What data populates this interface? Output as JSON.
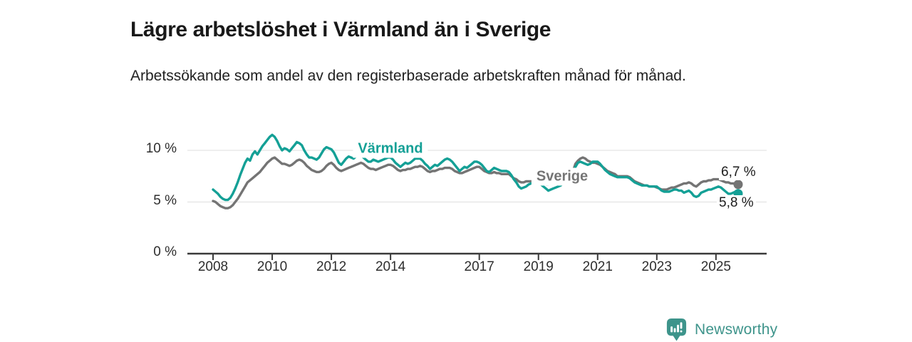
{
  "title": "Lägre arbetslöshet i Värmland än i Sverige",
  "subtitle": "Arbetssökande som andel av den registerbaserade arbetskraften månad för månad.",
  "branding": {
    "name": "Newsworthy",
    "icon": "newsworthy-speech-bubble-bar-chart-icon",
    "color": "#3E948B"
  },
  "colors": {
    "varmland_teal": "#14A096",
    "sverige_gray": "#747474",
    "gridline": "#E3E3E3",
    "axis": "#3A3A3A",
    "text": "#1D1D1D"
  },
  "chart_data": {
    "type": "line",
    "unit": "%",
    "x_frequency": "monthly",
    "x_start": "2008-01",
    "x_end": "2025-10",
    "grid": "horizontal-only",
    "legend_position": "inline-labels",
    "ylim": [
      0,
      12
    ],
    "yticks": [
      {
        "value": 0,
        "label": "0 %"
      },
      {
        "value": 5,
        "label": "5 %"
      },
      {
        "value": 10,
        "label": "10 %"
      }
    ],
    "xticks": [
      "2008",
      "2010",
      "2012",
      "2014",
      "2017",
      "2019",
      "2021",
      "2023",
      "2025"
    ],
    "series": [
      {
        "name": "Värmland",
        "color": "#14A096",
        "end_label": "5,8 %",
        "end_value": 5.8,
        "values": [
          6.2,
          6.0,
          5.8,
          5.5,
          5.3,
          5.2,
          5.2,
          5.4,
          5.8,
          6.3,
          6.9,
          7.6,
          8.2,
          8.8,
          9.2,
          9.0,
          9.6,
          9.9,
          9.6,
          10.0,
          10.4,
          10.7,
          11.0,
          11.3,
          11.5,
          11.3,
          10.9,
          10.4,
          10.0,
          10.2,
          10.1,
          9.9,
          10.2,
          10.5,
          10.8,
          10.7,
          10.5,
          10.0,
          9.6,
          9.3,
          9.3,
          9.2,
          9.1,
          9.3,
          9.7,
          10.1,
          10.3,
          10.2,
          10.1,
          9.8,
          9.3,
          8.8,
          8.6,
          8.9,
          9.2,
          9.4,
          9.3,
          9.2,
          9.4,
          9.6,
          9.5,
          9.3,
          9.1,
          8.9,
          8.9,
          9.1,
          9.0,
          8.9,
          9.0,
          9.1,
          9.2,
          9.3,
          9.3,
          9.1,
          8.8,
          8.6,
          8.4,
          8.6,
          8.8,
          8.7,
          8.8,
          9.0,
          9.2,
          9.2,
          9.2,
          9.0,
          8.7,
          8.5,
          8.2,
          8.4,
          8.6,
          8.5,
          8.7,
          8.9,
          9.1,
          9.2,
          9.1,
          8.9,
          8.6,
          8.3,
          8.0,
          8.2,
          8.4,
          8.3,
          8.5,
          8.7,
          8.9,
          8.9,
          8.8,
          8.6,
          8.3,
          8.0,
          7.9,
          8.1,
          8.3,
          8.2,
          8.1,
          8.0,
          8.0,
          8.0,
          7.9,
          7.6,
          7.2,
          6.9,
          6.5,
          6.3,
          6.4,
          6.5,
          6.7,
          6.8,
          6.9,
          7.0,
          6.9,
          6.7,
          6.5,
          6.3,
          6.1,
          6.2,
          6.3,
          6.4,
          6.5,
          6.6,
          6.8,
          7.0,
          7.2,
          7.4,
          7.8,
          8.4,
          8.8,
          8.9,
          8.8,
          8.7,
          8.6,
          8.7,
          8.9,
          8.9,
          8.9,
          8.7,
          8.4,
          8.1,
          7.9,
          7.7,
          7.6,
          7.5,
          7.4,
          7.4,
          7.4,
          7.4,
          7.4,
          7.3,
          7.1,
          6.9,
          6.8,
          6.7,
          6.6,
          6.6,
          6.6,
          6.5,
          6.5,
          6.5,
          6.5,
          6.3,
          6.1,
          6.0,
          6.0,
          6.0,
          6.1,
          6.2,
          6.2,
          6.1,
          6.1,
          5.9,
          6.0,
          6.1,
          5.9,
          5.6,
          5.5,
          5.6,
          5.9,
          6.0,
          6.1,
          6.2,
          6.2,
          6.3,
          6.4,
          6.5,
          6.4,
          6.2,
          6.0,
          5.8,
          5.8,
          5.9,
          6.0,
          5.8
        ]
      },
      {
        "name": "Sverige",
        "color": "#747474",
        "end_label": "6,7 %",
        "end_value": 6.7,
        "values": [
          5.1,
          5.0,
          4.8,
          4.6,
          4.5,
          4.4,
          4.4,
          4.5,
          4.7,
          5.0,
          5.3,
          5.7,
          6.1,
          6.5,
          6.9,
          7.1,
          7.3,
          7.5,
          7.7,
          7.9,
          8.2,
          8.5,
          8.8,
          9.0,
          9.2,
          9.3,
          9.1,
          8.9,
          8.7,
          8.7,
          8.6,
          8.5,
          8.6,
          8.8,
          9.0,
          9.1,
          9.0,
          8.8,
          8.5,
          8.3,
          8.1,
          8.0,
          7.9,
          7.9,
          8.0,
          8.2,
          8.5,
          8.7,
          8.8,
          8.6,
          8.3,
          8.1,
          8.0,
          8.1,
          8.2,
          8.3,
          8.4,
          8.5,
          8.6,
          8.7,
          8.8,
          8.7,
          8.5,
          8.3,
          8.2,
          8.2,
          8.1,
          8.2,
          8.3,
          8.4,
          8.5,
          8.6,
          8.6,
          8.5,
          8.3,
          8.1,
          8.0,
          8.1,
          8.1,
          8.2,
          8.2,
          8.3,
          8.4,
          8.4,
          8.5,
          8.4,
          8.2,
          8.0,
          7.9,
          8.0,
          8.0,
          8.1,
          8.2,
          8.2,
          8.3,
          8.3,
          8.3,
          8.2,
          8.0,
          7.9,
          7.8,
          7.8,
          7.9,
          8.0,
          8.1,
          8.2,
          8.3,
          8.4,
          8.4,
          8.2,
          8.0,
          7.9,
          7.8,
          7.8,
          7.9,
          7.8,
          7.8,
          7.7,
          7.7,
          7.7,
          7.7,
          7.5,
          7.3,
          7.2,
          7.0,
          6.9,
          6.9,
          7.0,
          7.0,
          7.0,
          7.0,
          7.0,
          7.0,
          6.9,
          6.8,
          6.7,
          6.7,
          6.8,
          6.9,
          6.9,
          7.0,
          7.1,
          7.2,
          7.4,
          7.5,
          7.6,
          8.0,
          8.7,
          9.0,
          9.2,
          9.3,
          9.2,
          9.0,
          8.9,
          8.8,
          8.8,
          8.7,
          8.6,
          8.4,
          8.2,
          8.0,
          7.9,
          7.8,
          7.7,
          7.5,
          7.5,
          7.5,
          7.5,
          7.5,
          7.4,
          7.2,
          7.0,
          6.9,
          6.8,
          6.7,
          6.6,
          6.6,
          6.5,
          6.5,
          6.5,
          6.4,
          6.3,
          6.2,
          6.2,
          6.2,
          6.3,
          6.4,
          6.4,
          6.5,
          6.6,
          6.7,
          6.8,
          6.8,
          6.9,
          6.8,
          6.6,
          6.5,
          6.7,
          6.9,
          7.0,
          7.0,
          7.1,
          7.1,
          7.2,
          7.2,
          7.2,
          7.1,
          7.0,
          6.9,
          6.9,
          6.8,
          6.8,
          6.7,
          6.7
        ]
      }
    ]
  }
}
